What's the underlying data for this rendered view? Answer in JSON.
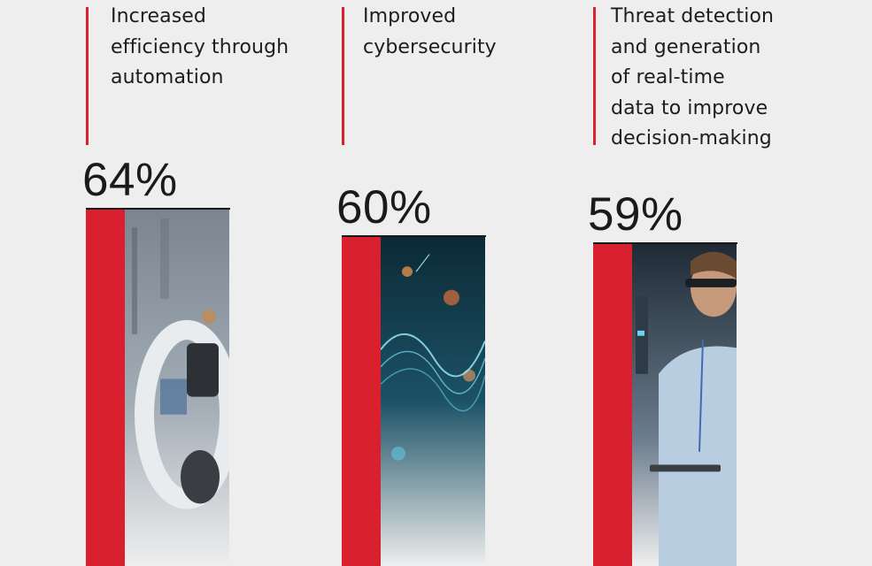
{
  "chart_data": {
    "type": "bar",
    "categories": [
      "Increased\nefficiency through\nautomation",
      "Improved\ncybersecurity",
      "Threat detection\nand generation\nof real-time\ndata to improve\ndecision-making"
    ],
    "values": [
      64,
      60,
      59
    ],
    "value_labels": [
      "64%",
      "60%",
      "59%"
    ],
    "unit": "%"
  },
  "colors": {
    "accent": "#d9202e",
    "background": "#eeeeee",
    "text": "#1d1d1d"
  },
  "images": [
    "robot-arm-photo",
    "cyber-data-photo",
    "engineer-photo"
  ]
}
